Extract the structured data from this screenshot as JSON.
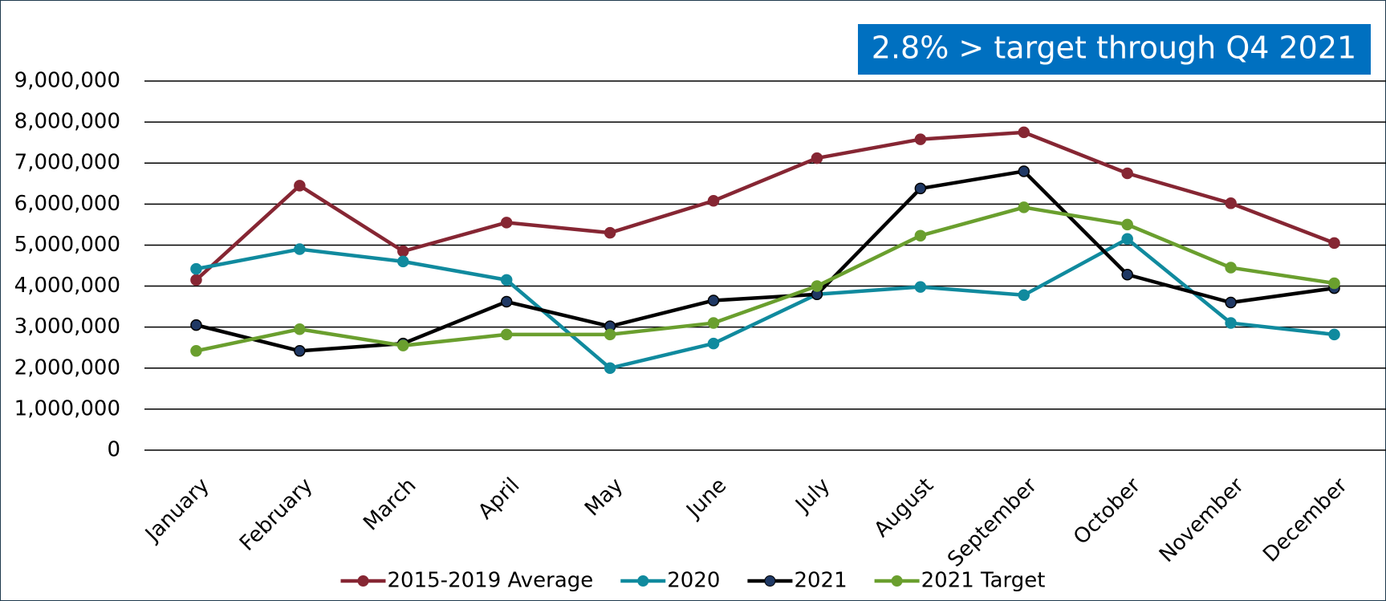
{
  "chart_data": {
    "type": "line",
    "annotation": "2.8% > target through Q4 2021",
    "categories": [
      "January",
      "February",
      "March",
      "April",
      "May",
      "June",
      "July",
      "August",
      "September",
      "October",
      "November",
      "December"
    ],
    "series": [
      {
        "name": "2015-2019 Average",
        "color": "#862633",
        "values": [
          4150000,
          6450000,
          4850000,
          5550000,
          5300000,
          6080000,
          7120000,
          7580000,
          7750000,
          6750000,
          6020000,
          5050000
        ]
      },
      {
        "name": "2020",
        "color": "#108a9e",
        "values": [
          4420000,
          4900000,
          4600000,
          4150000,
          2000000,
          2600000,
          3800000,
          3980000,
          3780000,
          5150000,
          3100000,
          2820000
        ]
      },
      {
        "name": "2021",
        "color": "#000000",
        "values": [
          3050000,
          2420000,
          2600000,
          3620000,
          3020000,
          3650000,
          3800000,
          6380000,
          6800000,
          4280000,
          3600000,
          3950000
        ]
      },
      {
        "name": "2021 Target",
        "color": "#6a9f2e",
        "values": [
          2420000,
          2950000,
          2550000,
          2820000,
          2820000,
          3100000,
          4000000,
          5230000,
          5920000,
          5500000,
          4450000,
          4070000
        ]
      }
    ],
    "ylim": [
      0,
      9000000
    ],
    "yticks": [
      0,
      {
        "value": 1000000,
        "label": "1,000,000"
      },
      {
        "value": 2000000,
        "label": "2,000,000"
      },
      {
        "value": 3000000,
        "label": "3,000,000"
      },
      {
        "value": 4000000,
        "label": "4,000,000"
      },
      {
        "value": 5000000,
        "label": "5,000,000"
      },
      {
        "value": 6000000,
        "label": "6,000,000"
      },
      {
        "value": 7000000,
        "label": "7,000,000"
      },
      {
        "value": 8000000,
        "label": "8,000,000"
      },
      {
        "value": 9000000,
        "label": "9,000,000"
      }
    ],
    "grid": true,
    "legend": "bottom",
    "annotation_color": "#0070c0"
  }
}
